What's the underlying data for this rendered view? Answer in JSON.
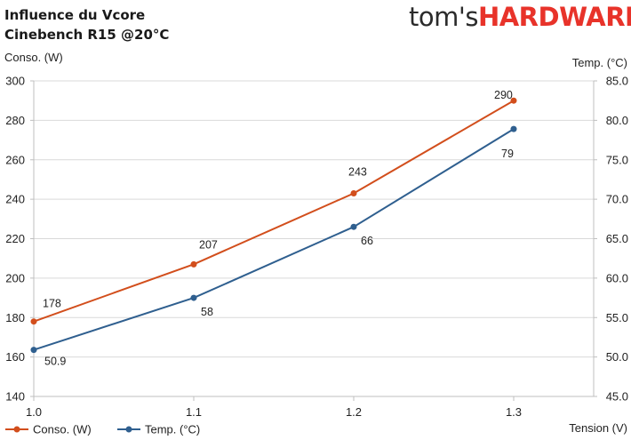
{
  "header": {
    "title_line1": "Influence du Vcore",
    "title_line2": "Cinebench R15 @20°C",
    "logo_part1": "tom's",
    "logo_part2": "HARDWARE"
  },
  "chart_data": {
    "type": "line",
    "x": [
      1.0,
      1.1,
      1.2,
      1.3
    ],
    "xlabel": "Tension (V)",
    "xlim": [
      1.0,
      1.35
    ],
    "xticks": [
      "1.0",
      "1.1",
      "1.2",
      "1.3"
    ],
    "ylabel_left": "Conso. (W)",
    "ylim_left": [
      140,
      300
    ],
    "yticks_left": [
      "140",
      "160",
      "180",
      "200",
      "220",
      "240",
      "260",
      "280",
      "300"
    ],
    "ylabel_right": "Temp. (°C)",
    "ylim_right": [
      45,
      85
    ],
    "yticks_right": [
      "45.0",
      "50.0",
      "55.0",
      "60.0",
      "65.0",
      "70.0",
      "75.0",
      "80.0",
      "85.0"
    ],
    "grid": "horizontal",
    "legend": "bottom-left",
    "series": [
      {
        "name": "Conso. (W)",
        "axis": "left",
        "color": "#d24e1c",
        "values": [
          178,
          207,
          243,
          290
        ],
        "labels": [
          "178",
          "207",
          "243",
          "290"
        ]
      },
      {
        "name": "Temp. (°C)",
        "axis": "right",
        "color": "#2f5f8f",
        "values": [
          50.9,
          57.5,
          66.5,
          78.9
        ],
        "labels": [
          "50.9",
          "58",
          "66",
          "79"
        ]
      }
    ]
  }
}
